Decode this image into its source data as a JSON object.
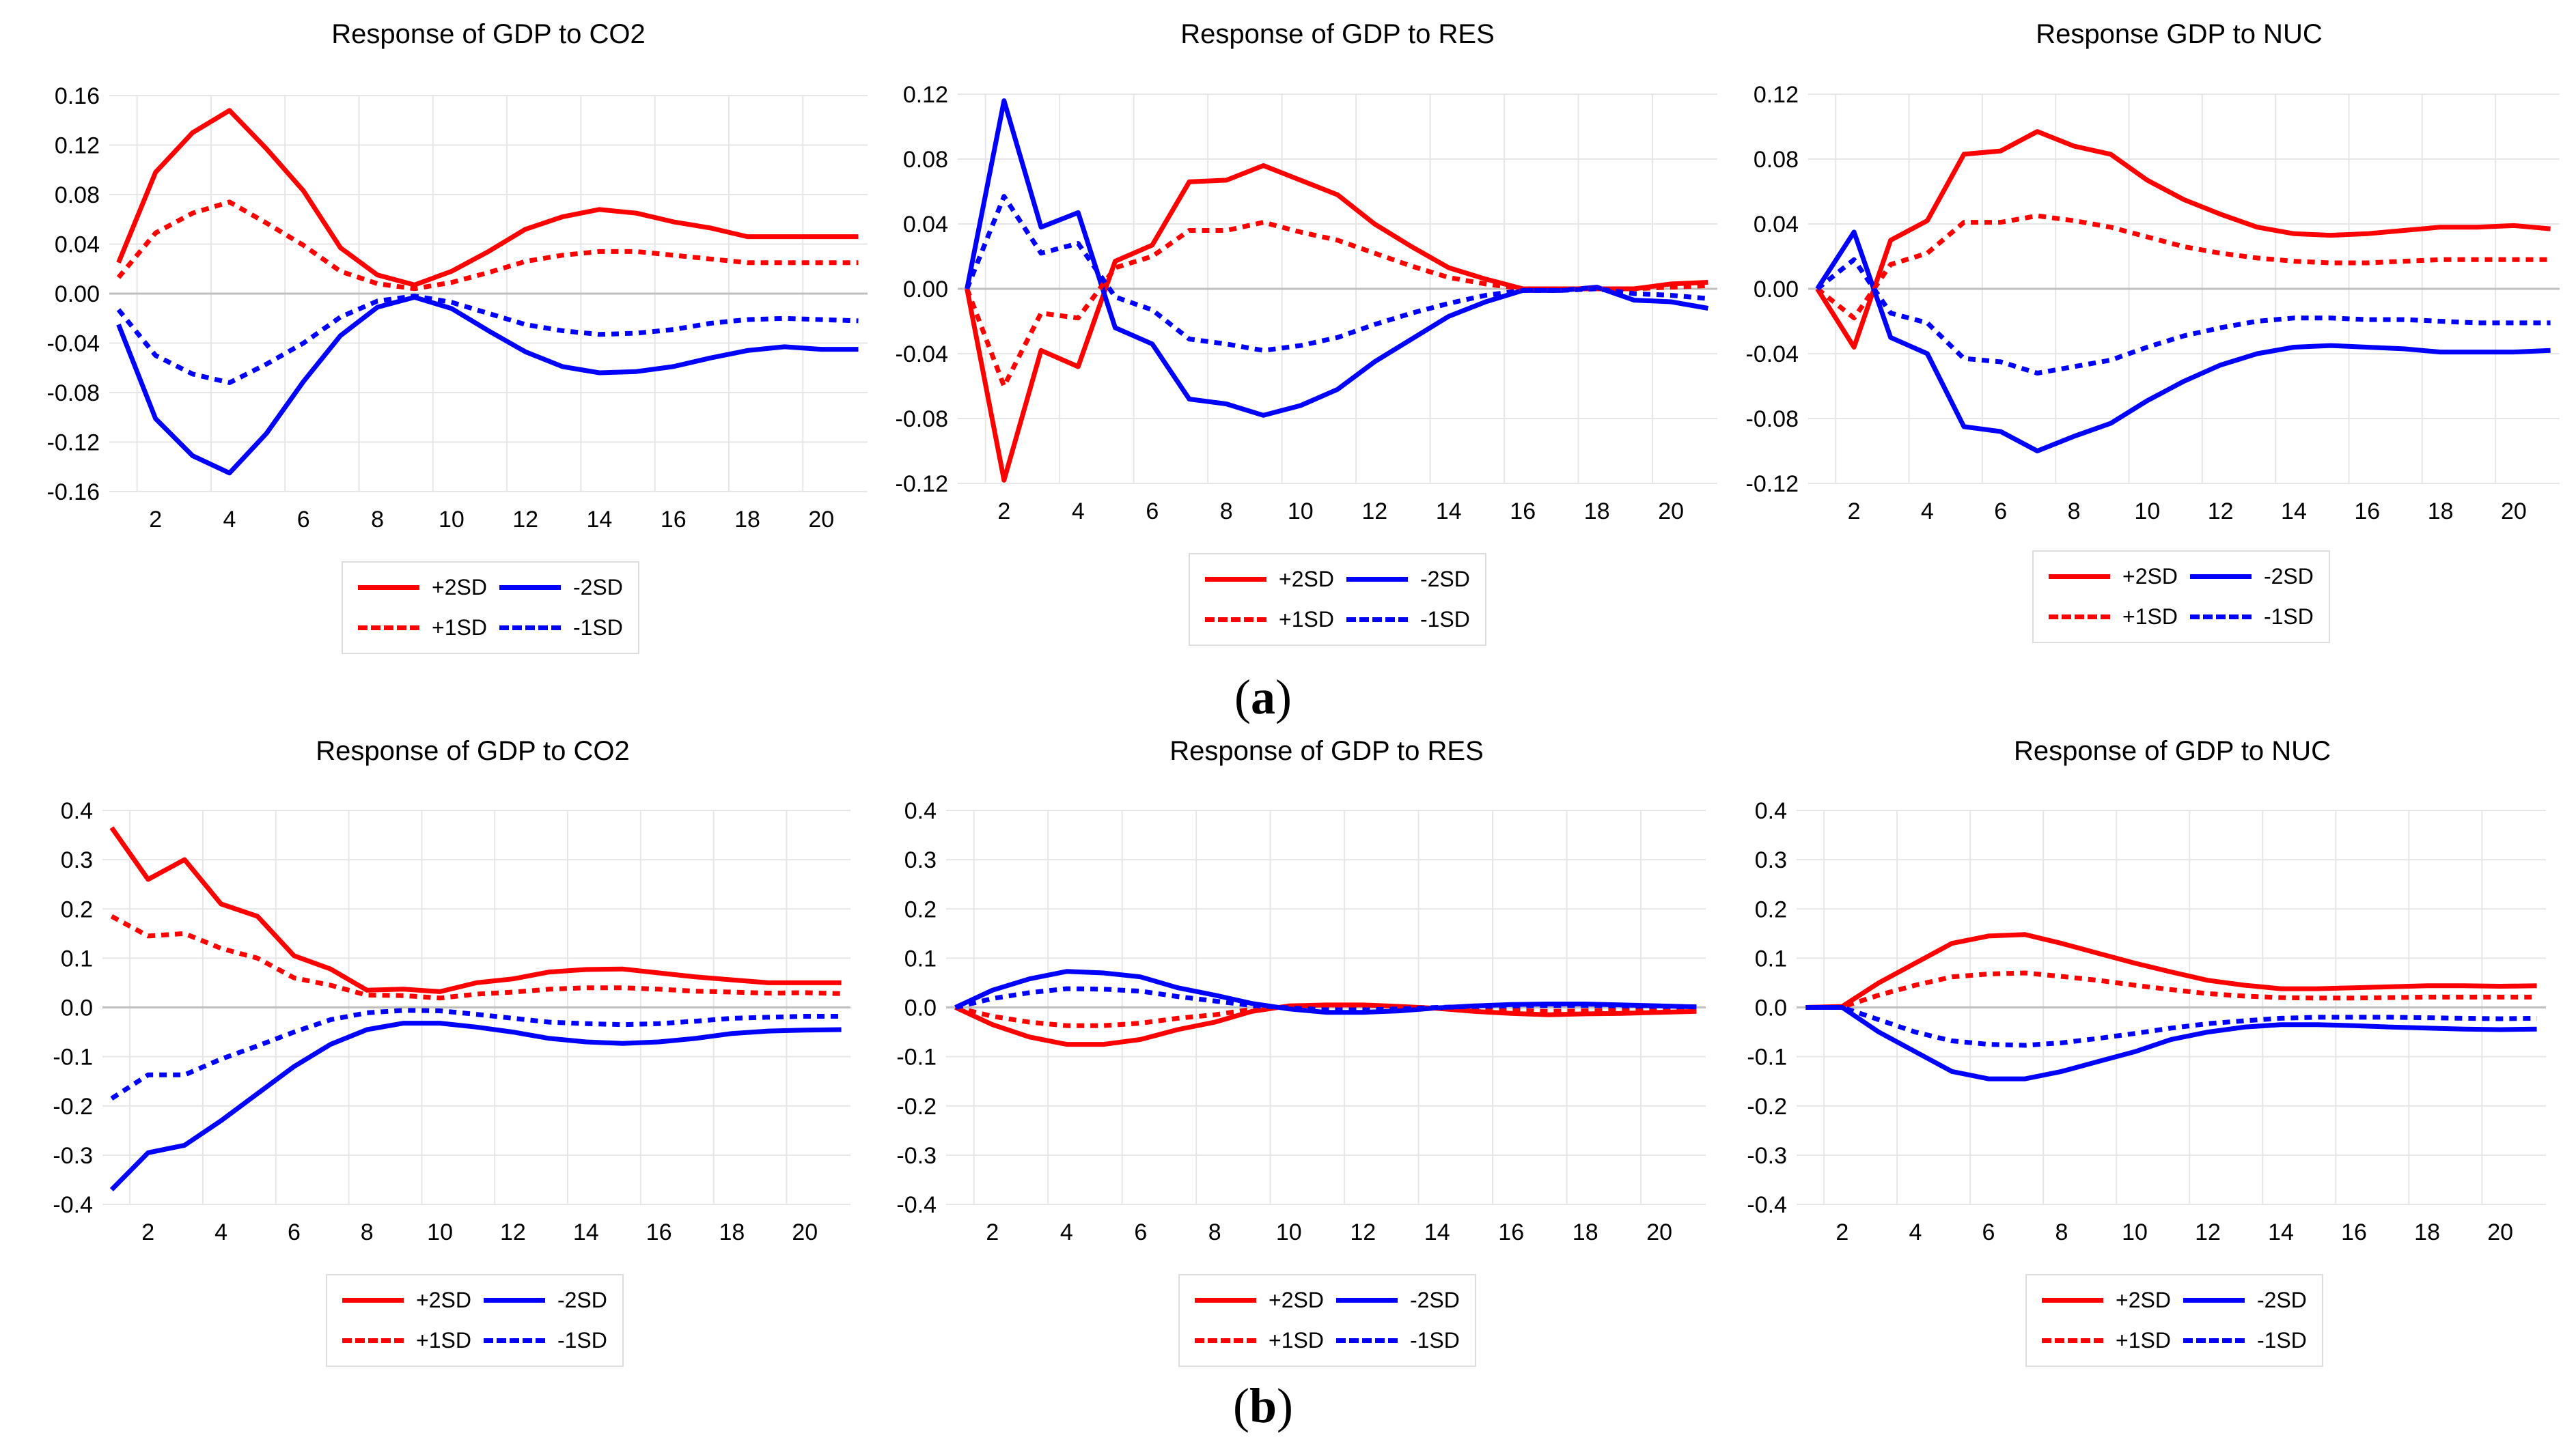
{
  "legend": {
    "p2": "+2SD",
    "m2": "-2SD",
    "p1": "+1SD",
    "m1": "-1SD"
  },
  "colors": {
    "positive": "#ff0000",
    "negative": "#0000ff",
    "grid": "#e6e6e6",
    "zero": "#bfbfbf"
  },
  "figure_labels": {
    "a": "a",
    "b": "b"
  },
  "chart_data": [
    {
      "type": "line",
      "panel": "a",
      "title": "Response of GDP to CO2",
      "ylim": [
        -0.16,
        0.16
      ],
      "yticks": [
        "0.16",
        "0.12",
        "0.08",
        "0.04",
        "0.00",
        "-0.04",
        "-0.08",
        "-0.12",
        "-0.16"
      ],
      "xticks": [
        2,
        4,
        6,
        8,
        10,
        12,
        14,
        16,
        18,
        20
      ],
      "x": [
        1,
        2,
        3,
        4,
        5,
        6,
        7,
        8,
        9,
        10,
        11,
        12,
        13,
        14,
        15,
        16,
        17,
        18,
        19,
        20,
        21
      ],
      "series": [
        {
          "name": "+2SD",
          "values": [
            0.025,
            0.098,
            0.13,
            0.148,
            0.117,
            0.083,
            0.037,
            0.015,
            0.007,
            0.018,
            0.034,
            0.052,
            0.062,
            0.068,
            0.065,
            0.058,
            0.053,
            0.046,
            0.046,
            0.046,
            0.046
          ]
        },
        {
          "name": "-2SD",
          "values": [
            -0.025,
            -0.101,
            -0.131,
            -0.145,
            -0.113,
            -0.071,
            -0.034,
            -0.011,
            -0.003,
            -0.012,
            -0.03,
            -0.047,
            -0.059,
            -0.064,
            -0.063,
            -0.059,
            -0.052,
            -0.046,
            -0.043,
            -0.045,
            -0.045
          ]
        },
        {
          "name": "+1SD",
          "values": [
            0.013,
            0.049,
            0.065,
            0.074,
            0.057,
            0.039,
            0.018,
            0.008,
            0.004,
            0.009,
            0.017,
            0.026,
            0.031,
            0.034,
            0.034,
            0.031,
            0.028,
            0.025,
            0.025,
            0.025,
            0.025
          ]
        },
        {
          "name": "-1SD",
          "values": [
            -0.013,
            -0.05,
            -0.065,
            -0.072,
            -0.057,
            -0.04,
            -0.019,
            -0.006,
            -0.002,
            -0.007,
            -0.016,
            -0.025,
            -0.03,
            -0.033,
            -0.032,
            -0.029,
            -0.024,
            -0.021,
            -0.02,
            -0.021,
            -0.022
          ]
        }
      ]
    },
    {
      "type": "line",
      "panel": "a",
      "title": "Response of GDP to RES",
      "ylim": [
        -0.12,
        0.12
      ],
      "yticks": [
        "0.12",
        "0.08",
        "0.04",
        "0.00",
        "-0.04",
        "-0.08",
        "-0.12"
      ],
      "xticks": [
        2,
        4,
        6,
        8,
        10,
        12,
        14,
        16,
        18,
        20
      ],
      "x": [
        1,
        2,
        3,
        4,
        5,
        6,
        7,
        8,
        9,
        10,
        11,
        12,
        13,
        14,
        15,
        16,
        17,
        18,
        19,
        20,
        21
      ],
      "series": [
        {
          "name": "+2SD",
          "values": [
            0,
            -0.118,
            -0.038,
            -0.048,
            0.017,
            0.027,
            0.066,
            0.067,
            0.076,
            0.067,
            0.058,
            0.04,
            0.026,
            0.013,
            0.006,
            0,
            0,
            0,
            0,
            0.003,
            0.004
          ]
        },
        {
          "name": "-2SD",
          "values": [
            0,
            0.116,
            0.038,
            0.047,
            -0.024,
            -0.034,
            -0.068,
            -0.071,
            -0.078,
            -0.072,
            -0.062,
            -0.045,
            -0.031,
            -0.017,
            -0.008,
            -0.001,
            -0.001,
            0.001,
            -0.007,
            -0.008,
            -0.012
          ]
        },
        {
          "name": "+1SD",
          "values": [
            0,
            -0.06,
            -0.015,
            -0.018,
            0.013,
            0.02,
            0.036,
            0.036,
            0.041,
            0.035,
            0.03,
            0.022,
            0.014,
            0.007,
            0.003,
            0,
            0,
            0,
            0,
            0.001,
            0.002
          ]
        },
        {
          "name": "-1SD",
          "values": [
            0,
            0.057,
            0.022,
            0.028,
            -0.005,
            -0.013,
            -0.031,
            -0.034,
            -0.038,
            -0.035,
            -0.03,
            -0.022,
            -0.015,
            -0.009,
            -0.004,
            -0.001,
            -0.001,
            0,
            -0.003,
            -0.004,
            -0.006
          ]
        }
      ]
    },
    {
      "type": "line",
      "panel": "a",
      "title": "Response GDP to NUC",
      "ylim": [
        -0.12,
        0.12
      ],
      "yticks": [
        "0.12",
        "0.08",
        "0.04",
        "0.00",
        "-0.04",
        "-0.08",
        "-0.12"
      ],
      "xticks": [
        2,
        4,
        6,
        8,
        10,
        12,
        14,
        16,
        18,
        20
      ],
      "x": [
        1,
        2,
        3,
        4,
        5,
        6,
        7,
        8,
        9,
        10,
        11,
        12,
        13,
        14,
        15,
        16,
        17,
        18,
        19,
        20,
        21
      ],
      "series": [
        {
          "name": "+2SD",
          "values": [
            0,
            -0.036,
            0.03,
            0.042,
            0.083,
            0.085,
            0.097,
            0.088,
            0.083,
            0.067,
            0.055,
            0.046,
            0.038,
            0.034,
            0.033,
            0.034,
            0.036,
            0.038,
            0.038,
            0.039,
            0.037
          ]
        },
        {
          "name": "-2SD",
          "values": [
            0,
            0.035,
            -0.03,
            -0.04,
            -0.085,
            -0.088,
            -0.1,
            -0.091,
            -0.083,
            -0.069,
            -0.057,
            -0.047,
            -0.04,
            -0.036,
            -0.035,
            -0.036,
            -0.037,
            -0.039,
            -0.039,
            -0.039,
            -0.038
          ]
        },
        {
          "name": "+1SD",
          "values": [
            0,
            -0.018,
            0.015,
            0.022,
            0.041,
            0.041,
            0.045,
            0.042,
            0.038,
            0.032,
            0.026,
            0.022,
            0.019,
            0.017,
            0.016,
            0.016,
            0.017,
            0.018,
            0.018,
            0.018,
            0.018
          ]
        },
        {
          "name": "-1SD",
          "values": [
            0,
            0.018,
            -0.015,
            -0.021,
            -0.043,
            -0.045,
            -0.052,
            -0.048,
            -0.044,
            -0.036,
            -0.029,
            -0.024,
            -0.02,
            -0.018,
            -0.018,
            -0.019,
            -0.019,
            -0.02,
            -0.021,
            -0.021,
            -0.021
          ]
        }
      ]
    },
    {
      "type": "line",
      "panel": "b",
      "title": "Response of GDP to CO2",
      "ylim": [
        -0.4,
        0.4
      ],
      "yticks": [
        "0.4",
        "0.3",
        "0.2",
        "0.1",
        "0.0",
        "-0.1",
        "-0.2",
        "-0.3",
        "-0.4"
      ],
      "xticks": [
        2,
        4,
        6,
        8,
        10,
        12,
        14,
        16,
        18,
        20
      ],
      "x": [
        1,
        2,
        3,
        4,
        5,
        6,
        7,
        8,
        9,
        10,
        11,
        12,
        13,
        14,
        15,
        16,
        17,
        18,
        19,
        20,
        21
      ],
      "series": [
        {
          "name": "+2SD",
          "values": [
            0.365,
            0.26,
            0.3,
            0.21,
            0.185,
            0.105,
            0.078,
            0.035,
            0.037,
            0.032,
            0.05,
            0.058,
            0.072,
            0.077,
            0.078,
            0.07,
            0.062,
            0.056,
            0.05,
            0.05,
            0.05
          ]
        },
        {
          "name": "-2SD",
          "values": [
            -0.37,
            -0.295,
            -0.28,
            -0.23,
            -0.175,
            -0.12,
            -0.075,
            -0.045,
            -0.032,
            -0.032,
            -0.04,
            -0.05,
            -0.063,
            -0.07,
            -0.073,
            -0.07,
            -0.063,
            -0.053,
            -0.048,
            -0.046,
            -0.045
          ]
        },
        {
          "name": "+1SD",
          "values": [
            0.185,
            0.145,
            0.15,
            0.12,
            0.1,
            0.06,
            0.045,
            0.025,
            0.024,
            0.019,
            0.027,
            0.031,
            0.037,
            0.04,
            0.04,
            0.037,
            0.033,
            0.031,
            0.029,
            0.03,
            0.028
          ]
        },
        {
          "name": "-1SD",
          "values": [
            -0.185,
            -0.137,
            -0.137,
            -0.105,
            -0.078,
            -0.05,
            -0.025,
            -0.011,
            -0.006,
            -0.007,
            -0.014,
            -0.022,
            -0.03,
            -0.033,
            -0.035,
            -0.033,
            -0.028,
            -0.022,
            -0.02,
            -0.018,
            -0.018
          ]
        }
      ]
    },
    {
      "type": "line",
      "panel": "b",
      "title": "Response of GDP to RES",
      "ylim": [
        -0.4,
        0.4
      ],
      "yticks": [
        "0.4",
        "0.3",
        "0.2",
        "0.1",
        "0.0",
        "-0.1",
        "-0.2",
        "-0.3",
        "-0.4"
      ],
      "xticks": [
        2,
        4,
        6,
        8,
        10,
        12,
        14,
        16,
        18,
        20
      ],
      "x": [
        1,
        2,
        3,
        4,
        5,
        6,
        7,
        8,
        9,
        10,
        11,
        12,
        13,
        14,
        15,
        16,
        17,
        18,
        19,
        20,
        21
      ],
      "series": [
        {
          "name": "+2SD",
          "values": [
            0,
            -0.035,
            -0.06,
            -0.075,
            -0.075,
            -0.065,
            -0.045,
            -0.03,
            -0.008,
            0.003,
            0.005,
            0.005,
            0.002,
            -0.002,
            -0.008,
            -0.012,
            -0.015,
            -0.013,
            -0.012,
            -0.01,
            -0.008
          ]
        },
        {
          "name": "-2SD",
          "values": [
            0,
            0.035,
            0.058,
            0.073,
            0.07,
            0.062,
            0.04,
            0.025,
            0.008,
            -0.003,
            -0.01,
            -0.01,
            -0.007,
            -0.001,
            0.003,
            0.006,
            0.007,
            0.007,
            0.005,
            0.003,
            0.001
          ]
        },
        {
          "name": "+1SD",
          "values": [
            0,
            -0.018,
            -0.03,
            -0.037,
            -0.037,
            -0.032,
            -0.022,
            -0.015,
            -0.004,
            0.002,
            0.003,
            0.003,
            0.001,
            -0.001,
            -0.004,
            -0.006,
            -0.008,
            -0.007,
            -0.006,
            -0.005,
            -0.004
          ]
        },
        {
          "name": "-1SD",
          "values": [
            0,
            0.018,
            0.03,
            0.038,
            0.037,
            0.033,
            0.022,
            0.013,
            0.004,
            -0.001,
            -0.005,
            -0.005,
            -0.003,
            0,
            0.002,
            0.003,
            0.004,
            0.004,
            0.003,
            0.002,
            0.001
          ]
        }
      ]
    },
    {
      "type": "line",
      "panel": "b",
      "title": "Response of GDP to NUC",
      "ylim": [
        -0.4,
        0.4
      ],
      "yticks": [
        "0.4",
        "0.3",
        "0.2",
        "0.1",
        "0.0",
        "-0.1",
        "-0.2",
        "-0.3",
        "-0.4"
      ],
      "xticks": [
        2,
        4,
        6,
        8,
        10,
        12,
        14,
        16,
        18,
        20
      ],
      "x": [
        1,
        2,
        3,
        4,
        5,
        6,
        7,
        8,
        9,
        10,
        11,
        12,
        13,
        14,
        15,
        16,
        17,
        18,
        19,
        20,
        21
      ],
      "series": [
        {
          "name": "+2SD",
          "values": [
            0,
            0.002,
            0.05,
            0.09,
            0.13,
            0.145,
            0.148,
            0.13,
            0.11,
            0.09,
            0.072,
            0.055,
            0.045,
            0.038,
            0.038,
            0.04,
            0.042,
            0.044,
            0.044,
            0.043,
            0.044
          ]
        },
        {
          "name": "-2SD",
          "values": [
            0,
            0,
            -0.05,
            -0.09,
            -0.13,
            -0.145,
            -0.145,
            -0.13,
            -0.11,
            -0.09,
            -0.065,
            -0.05,
            -0.04,
            -0.035,
            -0.035,
            -0.037,
            -0.04,
            -0.042,
            -0.044,
            -0.045,
            -0.044
          ]
        },
        {
          "name": "+1SD",
          "values": [
            0,
            0.001,
            0.025,
            0.045,
            0.062,
            0.068,
            0.07,
            0.063,
            0.055,
            0.045,
            0.036,
            0.028,
            0.023,
            0.02,
            0.019,
            0.019,
            0.02,
            0.021,
            0.021,
            0.021,
            0.021
          ]
        },
        {
          "name": "-1SD",
          "values": [
            0,
            0,
            -0.025,
            -0.05,
            -0.068,
            -0.075,
            -0.077,
            -0.072,
            -0.063,
            -0.053,
            -0.042,
            -0.033,
            -0.027,
            -0.022,
            -0.02,
            -0.02,
            -0.02,
            -0.021,
            -0.022,
            -0.023,
            -0.022
          ]
        }
      ]
    }
  ]
}
